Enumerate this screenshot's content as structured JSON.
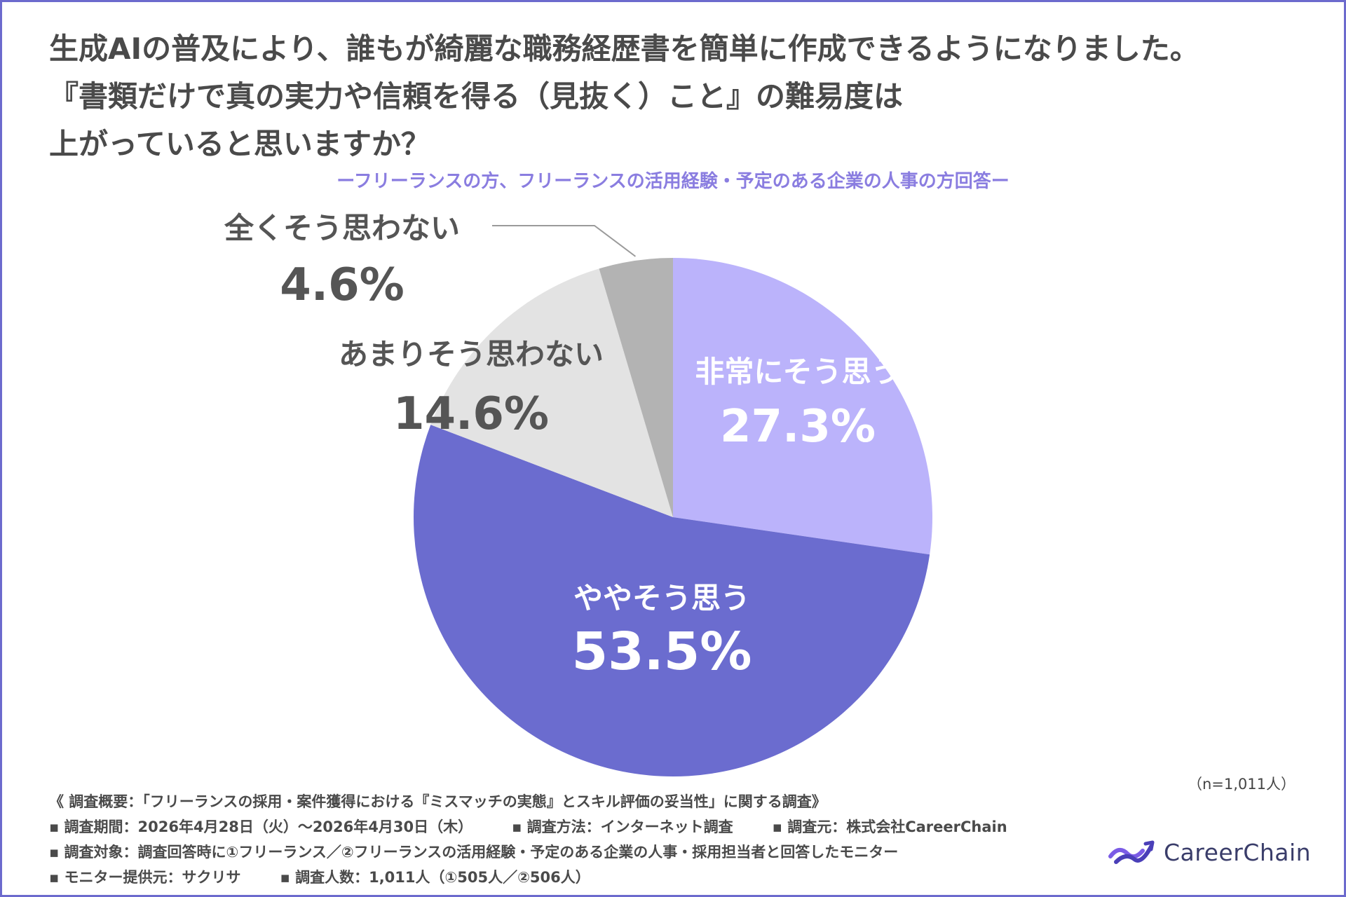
{
  "header": {
    "title_lines": [
      "生成AIの普及により、誰もが綺麗な職務経歴書を簡単に作成できるようになりました。",
      "『書類だけで真の実力や信頼を得る（見抜く）こと』の難易度は",
      "上がっていると思いますか？"
    ],
    "subtitle": "ーフリーランスの方、フリーランスの活用経験・予定のある企業の人事の方回答ー"
  },
  "chart_data": {
    "type": "pie",
    "title": "",
    "start": "12 o'clock, clockwise",
    "slices": [
      {
        "label": "非常にそう思う",
        "value": 27.3,
        "display": "27.3%",
        "color": "#bbb3fb",
        "text_color": "#ffffff"
      },
      {
        "label": "ややそう思う",
        "value": 53.5,
        "display": "53.5%",
        "color": "#6b6ccf",
        "text_color": "#ffffff"
      },
      {
        "label": "あまりそう思わない",
        "value": 14.6,
        "display": "14.6%",
        "color": "#e3e3e3",
        "text_color": "#555555"
      },
      {
        "label": "全くそう思わない",
        "value": 4.6,
        "display": "4.6%",
        "color": "#b3b3b3",
        "text_color": "#555555"
      }
    ]
  },
  "footer": {
    "sample_size": "（n=1,011人）",
    "survey_title": "《 調査概要：「フリーランスの採用・案件獲得における『ミスマッチの実態』とスキル評価の妥当性」に関する調査》",
    "period": "▪ 調査期間：2026年4月28日（火）～2026年4月30日（木）",
    "method": "▪ 調査方法：インターネット調査",
    "source": "▪ 調査元：株式会社CareerChain",
    "target": "▪ 調査対象：調査回答時に①フリーランス／②フリーランスの活用経験・予定のある企業の人事・採用担当者と回答したモニター",
    "provider": "▪ モニター提供元：サクリサ",
    "count": "▪ 調査人数：1,011人（①505人／②506人）"
  },
  "logo": {
    "name": "CareerChain",
    "accent_color": "#7b5ce6"
  }
}
